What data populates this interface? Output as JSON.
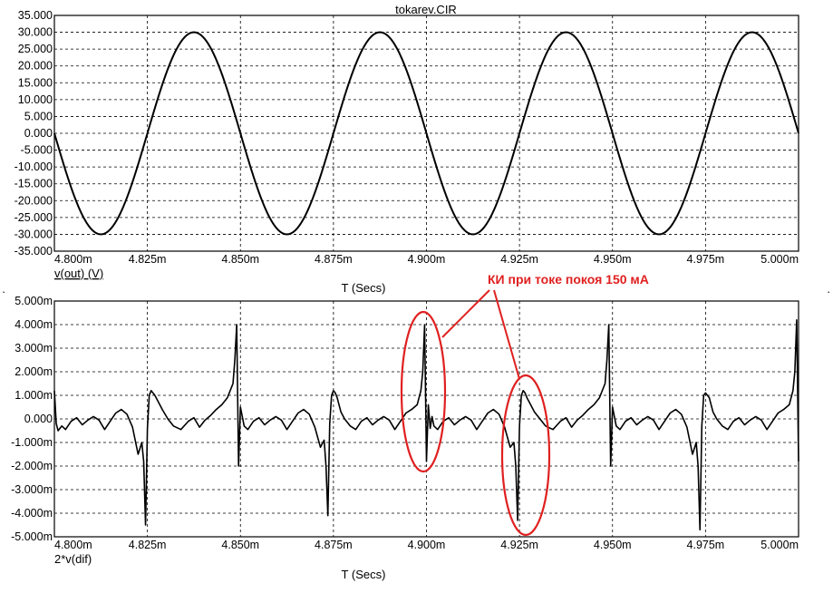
{
  "window_title": "tokarev.CIR",
  "colors": {
    "trace": "#000000",
    "grid": "#000000",
    "annotation": "#e02020",
    "background": "#ffffff"
  },
  "annotation": {
    "text": "КИ при токе покоя 150 мА",
    "highlighted_x": [
      "4.900m",
      "4.925m"
    ]
  },
  "chart_data": [
    {
      "type": "line",
      "xlabel": "T (Secs)",
      "ylabel": "v(out) (V)",
      "xlim": [
        4.8,
        5.0
      ],
      "ylim": [
        -35,
        35
      ],
      "grid": true,
      "x_ticks": [
        4.8,
        4.825,
        4.85,
        4.875,
        4.9,
        4.925,
        4.95,
        4.975,
        5.0
      ],
      "x_tick_labels": [
        "4.800m",
        "4.825m",
        "4.850m",
        "4.875m",
        "4.900m",
        "4.925m",
        "4.950m",
        "4.975m",
        "5.000m"
      ],
      "y_ticks": [
        35,
        30,
        25,
        20,
        15,
        10,
        5,
        0,
        -5,
        -10,
        -15,
        -20,
        -25,
        -30,
        -35
      ],
      "y_tick_labels": [
        "35.000",
        "30.000",
        "25.000",
        "20.000",
        "15.000",
        "10.000",
        "5.000",
        "0.000",
        "-5.000",
        "-10.000",
        "-15.000",
        "-20.000",
        "-25.000",
        "-30.000",
        "-35.000"
      ],
      "series": [
        {
          "name": "v(out)",
          "x": [
            4.8,
            4.8125,
            4.825,
            4.8375,
            4.85,
            4.8625,
            4.875,
            4.8875,
            4.9,
            4.9125,
            4.925,
            4.9375,
            4.95,
            4.9625,
            4.975,
            4.9875,
            5.0
          ],
          "y": [
            0,
            -30,
            0,
            30,
            0,
            -30,
            0,
            30,
            0,
            -30,
            0,
            30,
            0,
            -30,
            0,
            30,
            0
          ]
        }
      ]
    },
    {
      "type": "line",
      "xlabel": "T (Secs)",
      "ylabel": "2*v(dif)",
      "xlim": [
        4.8,
        5.0
      ],
      "ylim": [
        -5,
        5
      ],
      "grid": true,
      "x_ticks": [
        4.8,
        4.825,
        4.85,
        4.875,
        4.9,
        4.925,
        4.95,
        4.975,
        5.0
      ],
      "x_tick_labels": [
        "4.800m",
        "4.825m",
        "4.850m",
        "4.875m",
        "4.900m",
        "4.925m",
        "4.950m",
        "4.975m",
        "5.000m"
      ],
      "y_ticks": [
        5,
        4,
        3,
        2,
        1,
        0,
        -1,
        -2,
        -3,
        -4,
        -5
      ],
      "y_tick_labels": [
        "5.000m",
        "4.000m",
        "3.000m",
        "2.000m",
        "1.000m",
        "0.000",
        "-1.000m",
        "-2.000m",
        "-3.000m",
        "-4.000m",
        "-5.000m"
      ],
      "series": [
        {
          "name": "2*v(dif)",
          "x": [
            4.8,
            4.8005,
            4.801,
            4.802,
            4.803,
            4.8045,
            4.806,
            4.8075,
            4.809,
            4.8105,
            4.812,
            4.8135,
            4.815,
            4.8165,
            4.818,
            4.8195,
            4.821,
            4.8225,
            4.8235,
            4.824,
            4.8245,
            4.825,
            4.8255,
            4.826,
            4.8265,
            4.827,
            4.828,
            4.829,
            4.8305,
            4.832,
            4.834,
            4.836,
            4.8375,
            4.839,
            4.8405,
            4.842,
            4.8435,
            4.845,
            4.8465,
            4.848,
            4.8485,
            4.849,
            4.8495,
            4.85,
            4.8505,
            4.851,
            4.852,
            4.8535,
            4.855,
            4.8565,
            4.858,
            4.8595,
            4.861,
            4.8625,
            4.864,
            4.8655,
            4.867,
            4.8685,
            4.87,
            4.8715,
            4.8725,
            4.873,
            4.8735,
            4.874,
            4.8745,
            4.875,
            4.8755,
            4.876,
            4.8765,
            4.877,
            4.878,
            4.8795,
            4.881,
            4.8825,
            4.884,
            4.8855,
            4.887,
            4.8885,
            4.89,
            4.8915,
            4.893,
            4.8945,
            4.896,
            4.8975,
            4.8985,
            4.899,
            4.8995,
            4.9,
            4.9005,
            4.901,
            4.9015,
            4.902,
            4.903,
            4.9045,
            4.906,
            4.9075,
            4.909,
            4.9105,
            4.912,
            4.9135,
            4.915,
            4.9165,
            4.918,
            4.9195,
            4.921,
            4.9225,
            4.9235,
            4.924,
            4.9245,
            4.925,
            4.9255,
            4.926,
            4.9265,
            4.927,
            4.928,
            4.929,
            4.9305,
            4.932,
            4.934,
            4.936,
            4.9375,
            4.939,
            4.9405,
            4.942,
            4.9435,
            4.945,
            4.9465,
            4.948,
            4.9485,
            4.949,
            4.9495,
            4.95,
            4.9505,
            4.951,
            4.952,
            4.9535,
            4.955,
            4.9565,
            4.958,
            4.9595,
            4.961,
            4.9625,
            4.964,
            4.9655,
            4.967,
            4.9685,
            4.97,
            4.9715,
            4.9725,
            4.973,
            4.9735,
            4.974,
            4.9745,
            4.975,
            4.9755,
            4.976,
            4.9765,
            4.977,
            4.978,
            4.9795,
            4.981,
            4.9825,
            4.984,
            4.9855,
            4.987,
            4.9885,
            4.99,
            4.9915,
            4.993,
            4.9945,
            4.996,
            4.9975,
            4.9985,
            4.999,
            4.9995,
            5.0
          ],
          "y": [
            1.2,
            -0.2,
            -0.5,
            -0.3,
            -0.45,
            -0.1,
            0.05,
            -0.25,
            -0.05,
            0.1,
            -0.05,
            -0.45,
            -0.1,
            0.25,
            0.4,
            0.2,
            -0.35,
            -1.5,
            -1.0,
            -1.8,
            -4.5,
            -0.4,
            1.0,
            1.2,
            1.1,
            1.0,
            0.7,
            0.4,
            0.0,
            -0.3,
            -0.45,
            -0.1,
            0.05,
            -0.35,
            -0.05,
            0.15,
            0.4,
            0.6,
            0.9,
            1.5,
            2.5,
            4.0,
            -2.0,
            0.5,
            0.1,
            -0.3,
            -0.45,
            -0.1,
            0.05,
            -0.25,
            -0.05,
            0.1,
            -0.05,
            -0.45,
            -0.1,
            0.25,
            0.4,
            0.2,
            -0.35,
            -1.2,
            -0.9,
            -2.0,
            -4.1,
            -0.2,
            1.0,
            1.2,
            1.1,
            0.9,
            0.6,
            0.3,
            0.0,
            -0.3,
            -0.45,
            -0.1,
            0.05,
            -0.25,
            -0.05,
            0.1,
            -0.05,
            -0.45,
            -0.1,
            0.25,
            0.4,
            0.6,
            1.2,
            2.0,
            4.0,
            -1.8,
            0.6,
            -0.4,
            0.1,
            -0.3,
            -0.45,
            -0.1,
            0.05,
            -0.25,
            -0.05,
            0.1,
            -0.05,
            -0.45,
            -0.1,
            0.25,
            0.4,
            0.2,
            -0.35,
            -1.2,
            -1.0,
            -2.0,
            -4.3,
            -0.3,
            1.0,
            1.2,
            1.1,
            0.9,
            0.6,
            0.3,
            0.0,
            -0.3,
            -0.45,
            -0.1,
            0.05,
            -0.35,
            -0.05,
            0.15,
            0.4,
            0.6,
            0.9,
            1.5,
            2.5,
            4.0,
            -2.0,
            0.5,
            0.1,
            -0.3,
            -0.45,
            -0.1,
            0.05,
            -0.25,
            -0.05,
            0.1,
            -0.05,
            -0.45,
            -0.1,
            0.25,
            0.4,
            0.2,
            -0.35,
            -1.5,
            -1.0,
            -2.0,
            -4.7,
            -0.3,
            1.0,
            1.1,
            1.0,
            0.9,
            0.6,
            0.3,
            0.0,
            -0.3,
            -0.45,
            -0.1,
            0.05,
            -0.25,
            -0.05,
            0.1,
            -0.05,
            -0.45,
            -0.1,
            0.25,
            0.4,
            0.6,
            1.2,
            2.0,
            4.2,
            -1.8
          ]
        }
      ]
    }
  ]
}
